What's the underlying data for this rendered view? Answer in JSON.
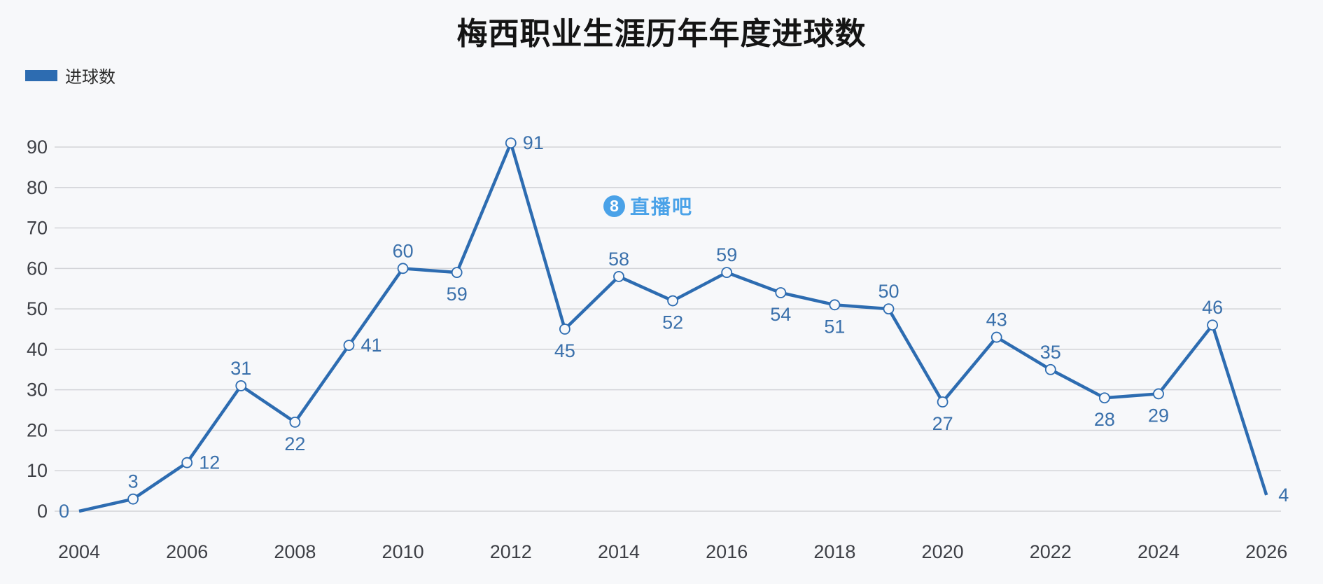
{
  "page": {
    "title": "梅西职业生涯历年年度进球数"
  },
  "legend": {
    "label": "进球数"
  },
  "watermark": {
    "logo_glyph": "8",
    "text": "直播吧"
  },
  "colors": {
    "background": "#f7f8fa",
    "title": "#141414",
    "line": "#2d6cb1",
    "marker_fill": "#f7f8fa",
    "data_label": "#3a70ab",
    "legend_swatch": "#2d6cb1",
    "grid": "#d3d4d8",
    "axis_tick_label": "#3d3f45",
    "watermark": "#4aa2e8"
  },
  "chart_data": {
    "type": "line",
    "title": "梅西职业生涯历年年度进球数",
    "legend": [
      "进球数"
    ],
    "legend_position": "top-left",
    "grid": true,
    "x": [
      2004,
      2005,
      2006,
      2007,
      2008,
      2009,
      2010,
      2011,
      2012,
      2013,
      2014,
      2015,
      2016,
      2017,
      2018,
      2019,
      2020,
      2021,
      2022,
      2023,
      2024,
      2025,
      2026
    ],
    "series": [
      {
        "name": "进球数",
        "values": [
          0,
          3,
          12,
          31,
          22,
          41,
          60,
          59,
          91,
          45,
          58,
          52,
          59,
          54,
          51,
          50,
          27,
          43,
          35,
          28,
          29,
          46,
          4
        ]
      }
    ],
    "label_positions": [
      "left",
      "above",
      "right",
      "above",
      "below",
      "right",
      "above",
      "below",
      "right",
      "below",
      "above",
      "below",
      "above",
      "below",
      "below",
      "above",
      "below",
      "above",
      "above",
      "below",
      "below",
      "above",
      "right"
    ],
    "x_ticks": [
      2004,
      2006,
      2008,
      2010,
      2012,
      2014,
      2016,
      2018,
      2020,
      2022,
      2024,
      2026
    ],
    "y_ticks": [
      0,
      10,
      20,
      30,
      40,
      50,
      60,
      70,
      80,
      90
    ],
    "ylim": [
      0,
      90
    ],
    "xlabel": "",
    "ylabel": ""
  }
}
